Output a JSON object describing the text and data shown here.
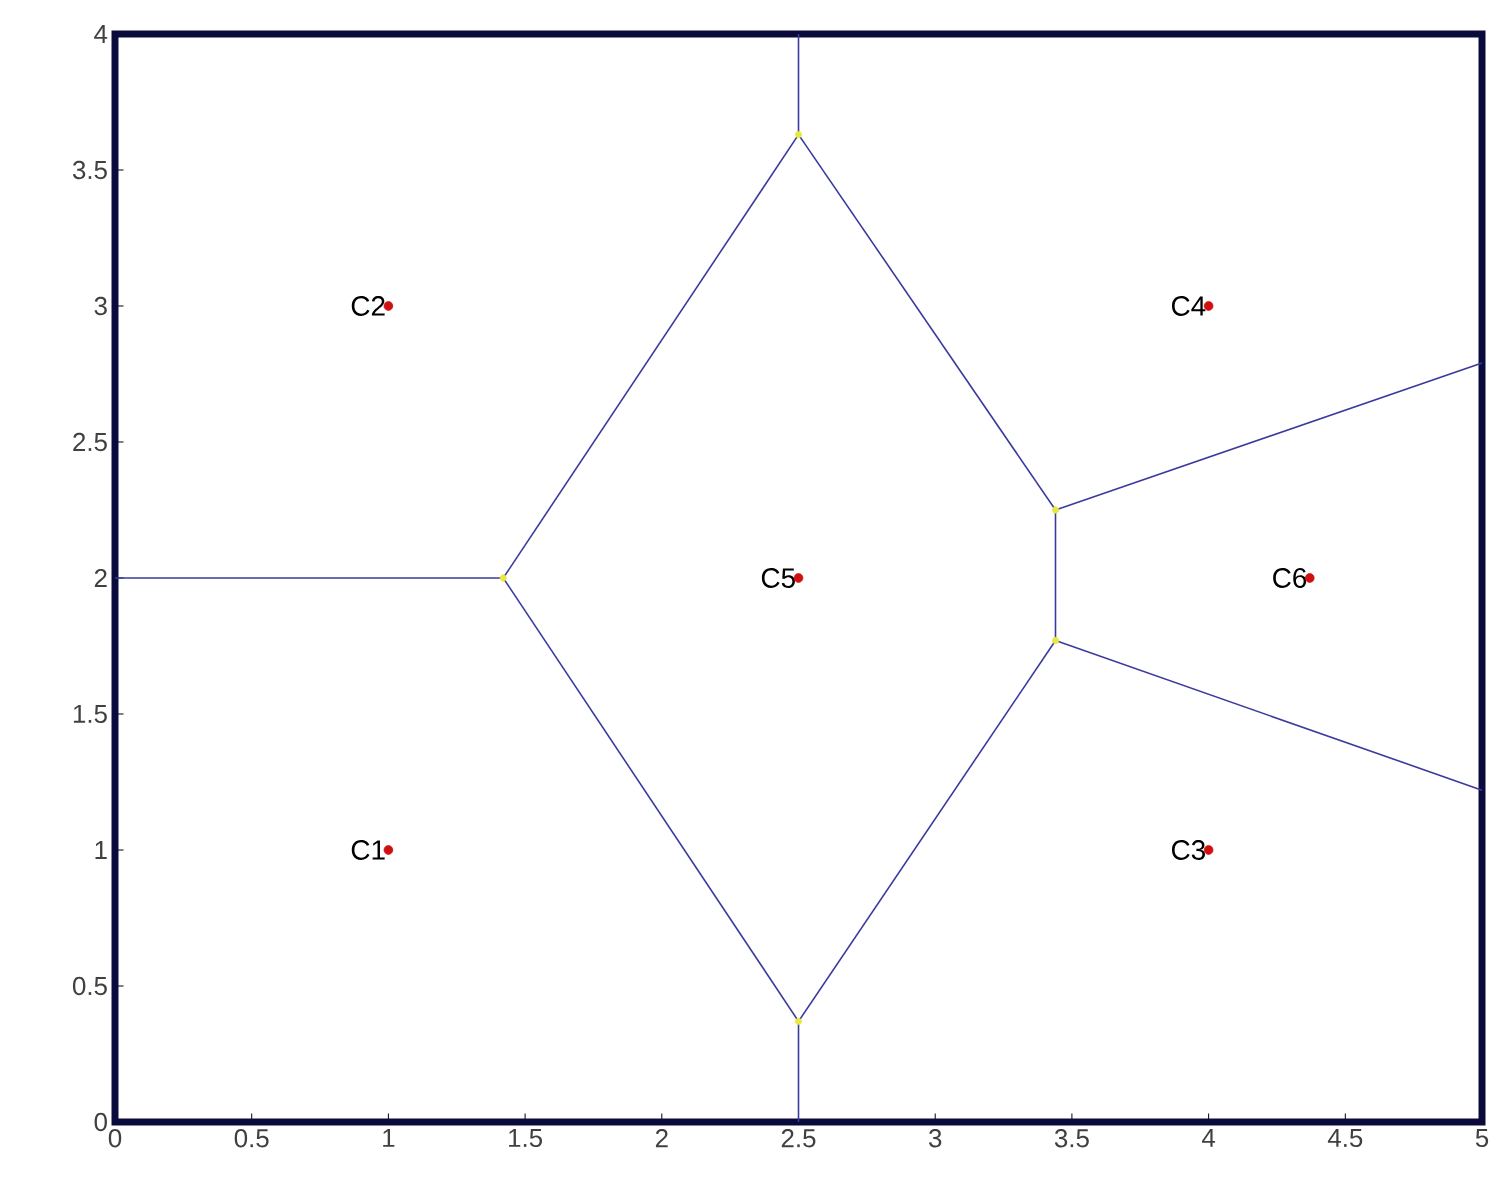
{
  "chart_data": {
    "type": "scatter",
    "xlim": [
      0,
      5
    ],
    "ylim": [
      0,
      4
    ],
    "xticks": [
      0,
      0.5,
      1,
      1.5,
      2,
      2.5,
      3,
      3.5,
      4,
      4.5,
      5
    ],
    "yticks": [
      0,
      0.5,
      1,
      1.5,
      2,
      2.5,
      3,
      3.5,
      4
    ],
    "grid": false,
    "series": [
      {
        "type": "line",
        "marker": "none",
        "color": "#3a3a9e",
        "x": [
          0,
          1.42
        ],
        "values": [
          2,
          2
        ]
      },
      {
        "type": "line",
        "marker": "none",
        "color": "#3a3a9e",
        "x": [
          1.42,
          2.5
        ],
        "values": [
          2,
          3.63
        ]
      },
      {
        "type": "line",
        "marker": "none",
        "color": "#3a3a9e",
        "x": [
          2.5,
          2.5
        ],
        "values": [
          3.63,
          4
        ]
      },
      {
        "type": "line",
        "marker": "none",
        "color": "#3a3a9e",
        "x": [
          2.5,
          3.44
        ],
        "values": [
          3.63,
          2.25
        ]
      },
      {
        "type": "line",
        "marker": "none",
        "color": "#3a3a9e",
        "x": [
          3.44,
          5
        ],
        "values": [
          2.25,
          2.79
        ]
      },
      {
        "type": "line",
        "marker": "none",
        "color": "#3a3a9e",
        "x": [
          3.44,
          3.44
        ],
        "values": [
          2.25,
          1.77
        ]
      },
      {
        "type": "line",
        "marker": "none",
        "color": "#3a3a9e",
        "x": [
          3.44,
          5
        ],
        "values": [
          1.77,
          1.22
        ]
      },
      {
        "type": "line",
        "marker": "none",
        "color": "#3a3a9e",
        "x": [
          3.44,
          2.5
        ],
        "values": [
          1.77,
          0.37
        ]
      },
      {
        "type": "line",
        "marker": "none",
        "color": "#3a3a9e",
        "x": [
          2.5,
          2.5
        ],
        "values": [
          0.37,
          0
        ]
      },
      {
        "type": "line",
        "marker": "none",
        "color": "#3a3a9e",
        "x": [
          2.5,
          1.42
        ],
        "values": [
          0.37,
          2
        ]
      },
      {
        "marker": "circle",
        "color": "#e8e840",
        "x": [
          1.42,
          2.5,
          3.44,
          3.44,
          2.5
        ],
        "values": [
          2,
          3.63,
          2.25,
          1.77,
          0.37
        ]
      },
      {
        "marker": "circle",
        "color": "#d01010",
        "x": [
          1,
          1,
          4,
          4,
          2.5,
          4.37
        ],
        "values": [
          1,
          3,
          1,
          3,
          2,
          2
        ]
      }
    ],
    "annotations": [
      {
        "text": "C1",
        "x": 1,
        "y": 1
      },
      {
        "text": "C2",
        "x": 1,
        "y": 3
      },
      {
        "text": "C3",
        "x": 4,
        "y": 1
      },
      {
        "text": "C4",
        "x": 4,
        "y": 3
      },
      {
        "text": "C5",
        "x": 2.5,
        "y": 2
      },
      {
        "text": "C6",
        "x": 4.37,
        "y": 2
      }
    ]
  }
}
